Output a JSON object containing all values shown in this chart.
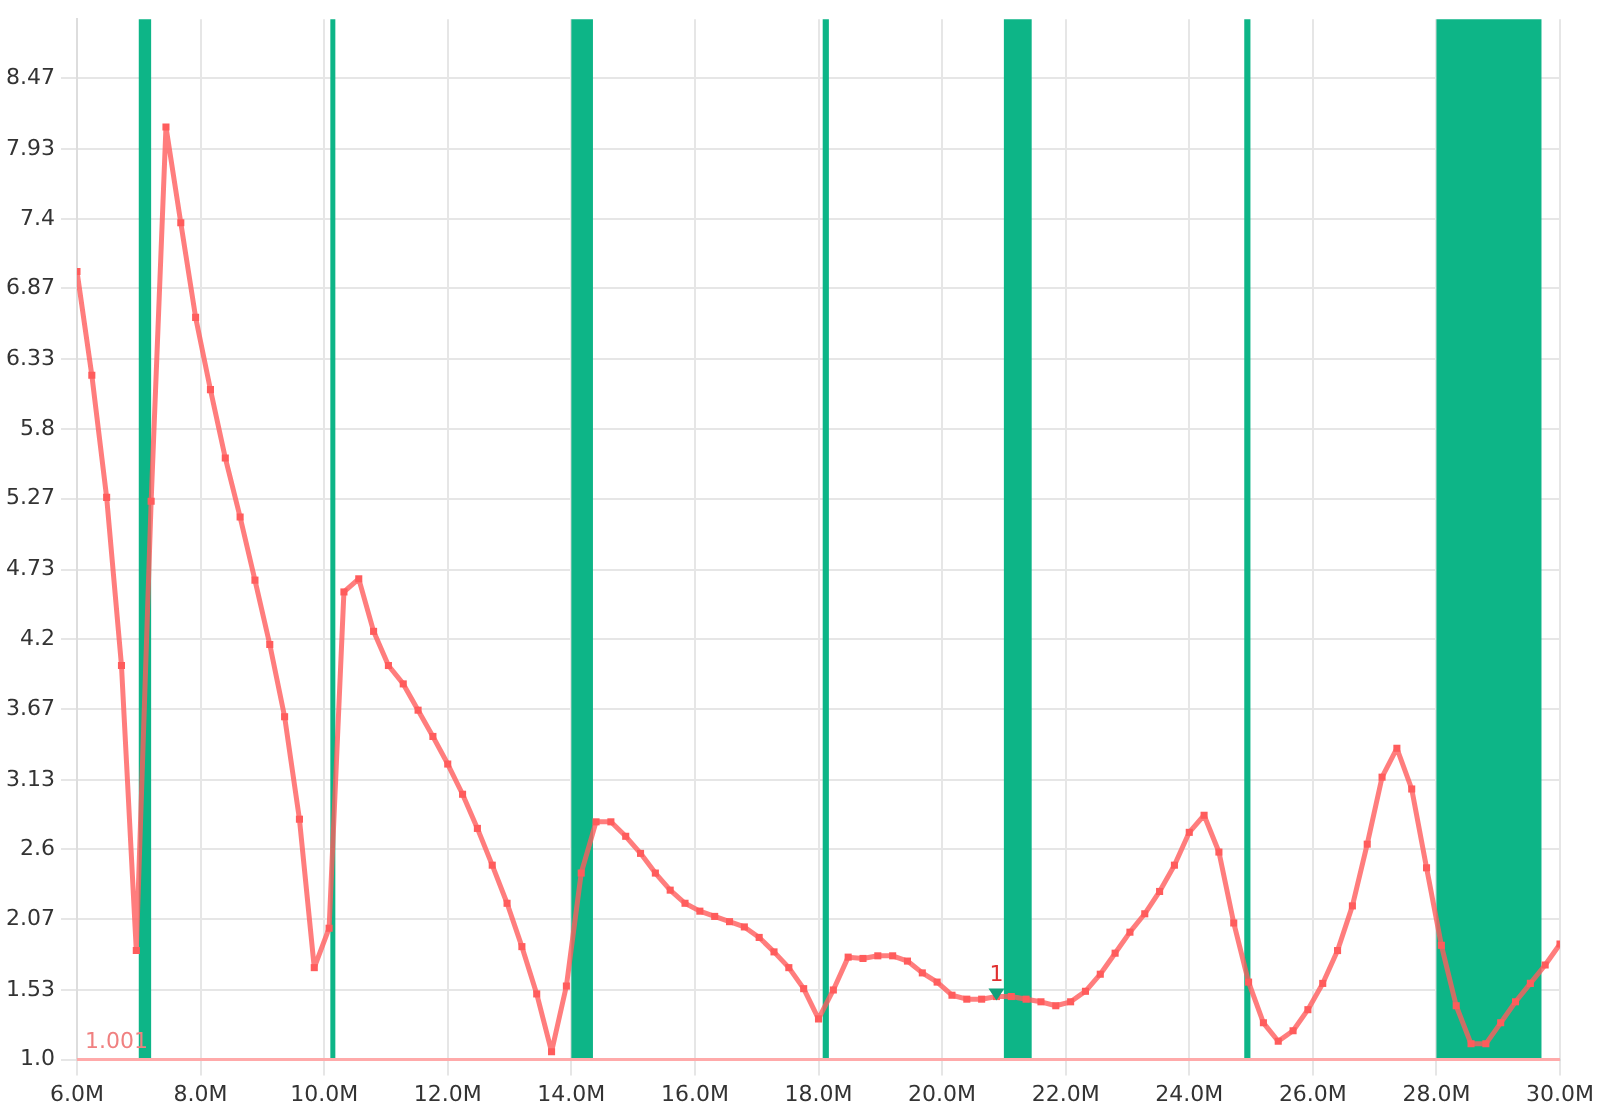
{
  "chart_data": {
    "type": "line",
    "x": [
      6.0,
      6.24,
      6.48,
      6.72,
      6.96,
      7.2,
      7.44,
      7.68,
      7.92,
      8.16,
      8.4,
      8.64,
      8.88,
      9.12,
      9.36,
      9.6,
      9.84,
      10.08,
      10.32,
      10.56,
      10.8,
      11.04,
      11.28,
      11.52,
      11.76,
      12.0,
      12.24,
      12.48,
      12.72,
      12.96,
      13.2,
      13.44,
      13.68,
      13.92,
      14.16,
      14.4,
      14.64,
      14.88,
      15.12,
      15.36,
      15.6,
      15.84,
      16.08,
      16.32,
      16.56,
      16.8,
      17.04,
      17.28,
      17.52,
      17.76,
      18.0,
      18.24,
      18.48,
      18.72,
      18.96,
      19.2,
      19.44,
      19.68,
      19.92,
      20.16,
      20.4,
      20.64,
      20.88,
      21.12,
      21.36,
      21.6,
      21.84,
      22.08,
      22.32,
      22.56,
      22.8,
      23.04,
      23.28,
      23.52,
      23.76,
      24.0,
      24.24,
      24.48,
      24.72,
      24.96,
      25.2,
      25.44,
      25.68,
      25.92,
      26.16,
      26.4,
      26.64,
      26.88,
      27.12,
      27.36,
      27.6,
      27.84,
      28.08,
      28.32,
      28.56,
      28.8,
      29.04,
      29.28,
      29.52,
      29.76,
      30.0
    ],
    "series": [
      {
        "color": "#ff5c5c",
        "values": [
          7.0,
          6.21,
          5.28,
          4.0,
          1.83,
          5.25,
          8.1,
          7.37,
          6.65,
          6.1,
          5.58,
          5.13,
          4.65,
          4.16,
          3.61,
          2.83,
          1.7,
          2.0,
          4.56,
          4.66,
          4.26,
          4.0,
          3.86,
          3.66,
          3.46,
          3.25,
          3.02,
          2.76,
          2.48,
          2.19,
          1.86,
          1.5,
          1.06,
          1.56,
          2.42,
          2.81,
          2.81,
          2.7,
          2.57,
          2.42,
          2.29,
          2.19,
          2.13,
          2.09,
          2.05,
          2.01,
          1.93,
          1.82,
          1.7,
          1.54,
          1.31,
          1.53,
          1.78,
          1.77,
          1.79,
          1.79,
          1.75,
          1.66,
          1.59,
          1.49,
          1.46,
          1.46,
          1.48,
          1.48,
          1.46,
          1.44,
          1.41,
          1.44,
          1.52,
          1.65,
          1.81,
          1.97,
          2.11,
          2.28,
          2.48,
          2.73,
          2.86,
          2.58,
          2.04,
          1.59,
          1.28,
          1.14,
          1.22,
          1.38,
          1.58,
          1.83,
          2.17,
          2.64,
          3.15,
          3.37,
          3.06,
          2.46,
          1.87,
          1.41,
          1.12,
          1.12,
          1.28,
          1.44,
          1.58,
          1.72,
          1.88
        ]
      }
    ],
    "xlim": [
      6,
      30
    ],
    "xticks": [
      {
        "value": 6,
        "label": "6.0M"
      },
      {
        "value": 8,
        "label": "8.0M"
      },
      {
        "value": 10,
        "label": "10.0M"
      },
      {
        "value": 12,
        "label": "12.0M"
      },
      {
        "value": 14,
        "label": "14.0M"
      },
      {
        "value": 16,
        "label": "16.0M"
      },
      {
        "value": 18,
        "label": "18.0M"
      },
      {
        "value": 20,
        "label": "20.0M"
      },
      {
        "value": 22,
        "label": "22.0M"
      },
      {
        "value": 24,
        "label": "24.0M"
      },
      {
        "value": 26,
        "label": "26.0M"
      },
      {
        "value": 28,
        "label": "28.0M"
      },
      {
        "value": 30,
        "label": "30.0M"
      }
    ],
    "ylim": [
      1,
      8.92
    ],
    "yticks": [
      {
        "value": 1,
        "label": "1.0"
      },
      1.53,
      2.07,
      2.6,
      3.13,
      3.67,
      4.2,
      4.73,
      5.27,
      5.8,
      6.33,
      6.87,
      7.4,
      7.93,
      8.47
    ],
    "grid": true,
    "legend": false,
    "marker": "square",
    "line_style": "solid",
    "bands": [
      {
        "axis": "x",
        "from": 7.0,
        "to": 7.2,
        "color": "#0db587"
      },
      {
        "axis": "x",
        "from": 10.1,
        "to": 10.15,
        "color": "#0db587"
      },
      {
        "axis": "x",
        "from": 14.0,
        "to": 14.35,
        "color": "#0db587"
      },
      {
        "axis": "x",
        "from": 18.068,
        "to": 18.168,
        "color": "#0db587"
      },
      {
        "axis": "x",
        "from": 21.0,
        "to": 21.45,
        "color": "#0db587"
      },
      {
        "axis": "x",
        "from": 24.89,
        "to": 24.99,
        "color": "#0db587"
      },
      {
        "axis": "x",
        "from": 28.0,
        "to": 29.7,
        "color": "#0db587"
      }
    ],
    "ref_lines": [
      {
        "axis": "y",
        "value": 1.001,
        "label": "1.001",
        "color": "#ffaaaa"
      }
    ],
    "annotations": [
      {
        "text": "1",
        "x": 20.88,
        "y": 1.48
      }
    ]
  }
}
